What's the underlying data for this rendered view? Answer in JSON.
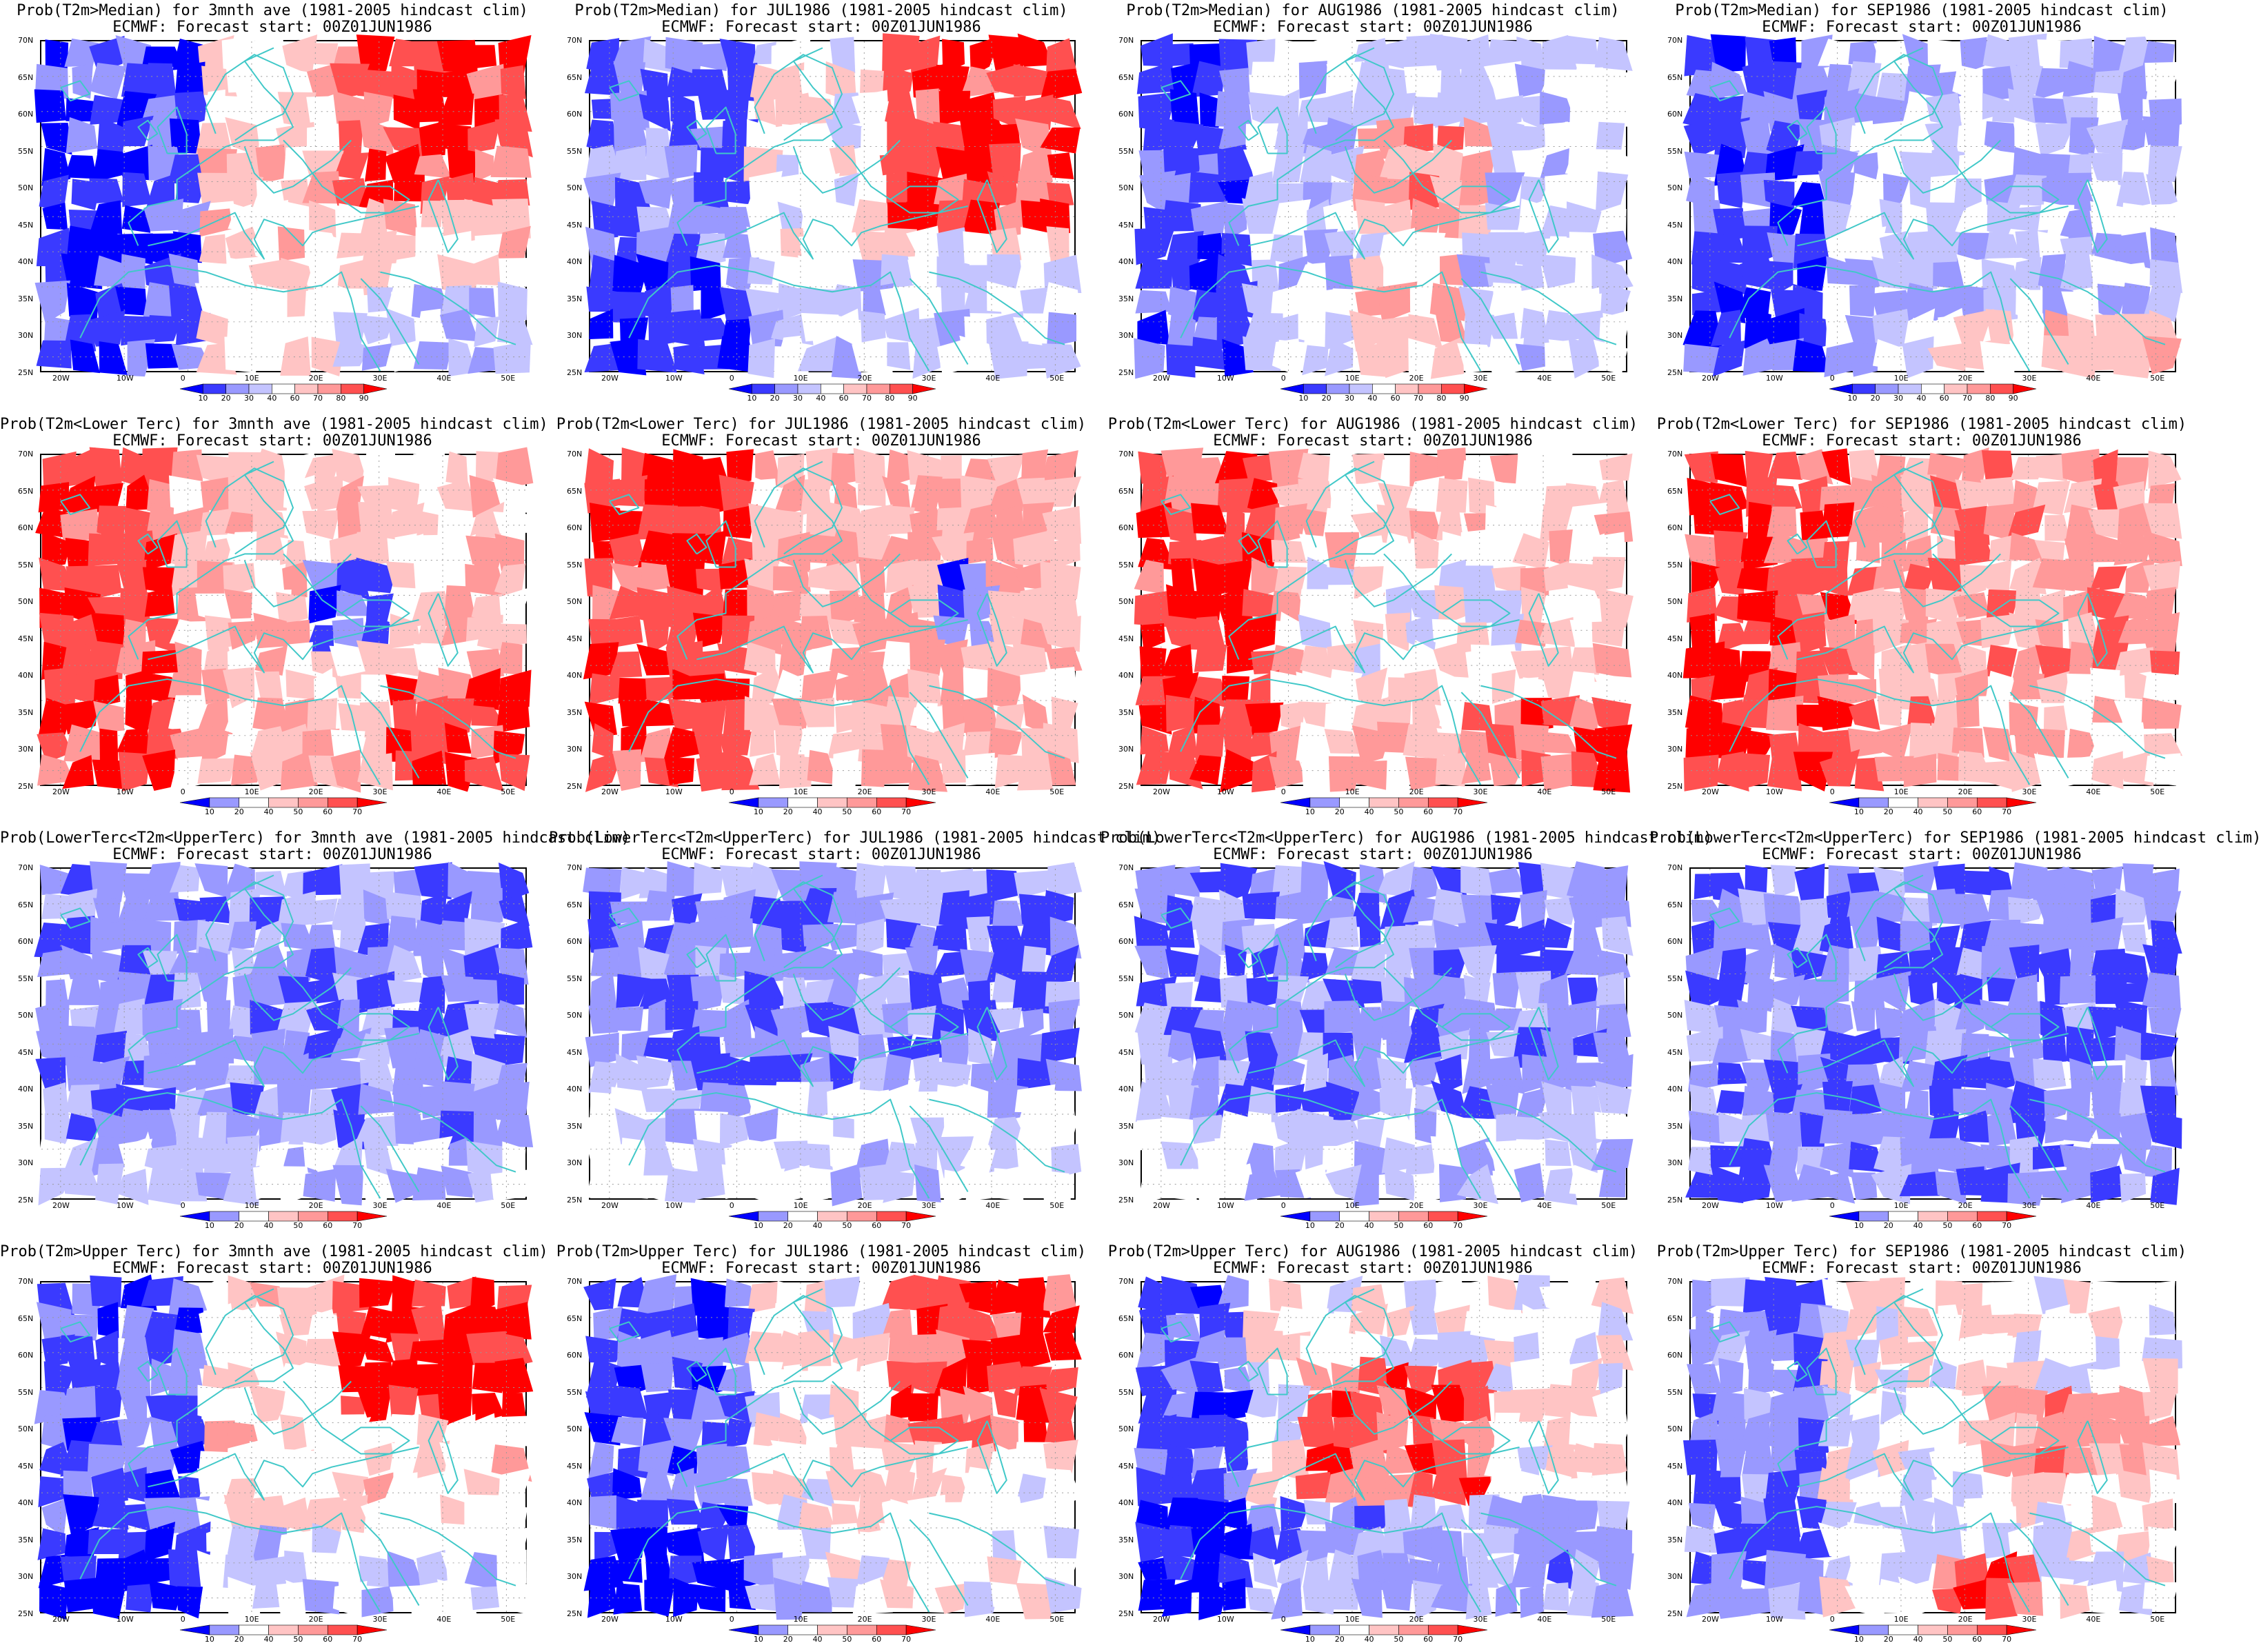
{
  "colors": {
    "blue_deep": "#0000ff",
    "blue_mid": "#3a3aff",
    "blue_light": "#9999ff",
    "blue_pale": "#c4c4ff",
    "white": "#ffffff",
    "red_pale": "#ffc4c4",
    "red_light": "#ff9999",
    "red_mid": "#ff5050",
    "red_deep": "#ff0000",
    "coast": "#40c8c8"
  },
  "axes": {
    "lat_labels": [
      "70N",
      "65N",
      "60N",
      "55N",
      "50N",
      "45N",
      "40N",
      "35N",
      "30N",
      "25N"
    ],
    "lon_labels": [
      "20W",
      "10W",
      "0",
      "10E",
      "20E",
      "30E",
      "40E",
      "50E"
    ]
  },
  "colorbars": {
    "median": [
      "10",
      "20",
      "30",
      "40",
      "60",
      "70",
      "80",
      "90"
    ],
    "tercile": [
      "10",
      "20",
      "40",
      "50",
      "60",
      "70"
    ]
  },
  "rows": [
    {
      "colorbar": "median",
      "panels": [
        {
          "title": "Prob(T2m>Median) for 3mnth ave (1981-2005 hindcast clim)",
          "subtitle": "ECMWF: Forecast start: 00Z01JUN1986",
          "pattern": "r1c1"
        },
        {
          "title": "Prob(T2m>Median) for JUL1986 (1981-2005 hindcast clim)",
          "subtitle": "ECMWF: Forecast start: 00Z01JUN1986",
          "pattern": "r1c2"
        },
        {
          "title": "Prob(T2m>Median) for AUG1986 (1981-2005 hindcast clim)",
          "subtitle": "ECMWF: Forecast start: 00Z01JUN1986",
          "pattern": "r1c3"
        },
        {
          "title": "Prob(T2m>Median) for SEP1986 (1981-2005 hindcast clim)",
          "subtitle": "ECMWF: Forecast start: 00Z01JUN1986",
          "pattern": "r1c4"
        }
      ]
    },
    {
      "colorbar": "tercile",
      "panels": [
        {
          "title": "Prob(T2m<Lower Terc) for 3mnth ave (1981-2005 hindcast clim)",
          "subtitle": "ECMWF: Forecast start: 00Z01JUN1986",
          "pattern": "r2c1"
        },
        {
          "title": "Prob(T2m<Lower Terc) for JUL1986 (1981-2005 hindcast clim)",
          "subtitle": "ECMWF: Forecast start: 00Z01JUN1986",
          "pattern": "r2c2"
        },
        {
          "title": "Prob(T2m<Lower Terc) for AUG1986 (1981-2005 hindcast clim)",
          "subtitle": "ECMWF: Forecast start: 00Z01JUN1986",
          "pattern": "r2c3"
        },
        {
          "title": "Prob(T2m<Lower Terc) for SEP1986 (1981-2005 hindcast clim)",
          "subtitle": "ECMWF: Forecast start: 00Z01JUN1986",
          "pattern": "r2c4"
        }
      ]
    },
    {
      "colorbar": "tercile",
      "panels": [
        {
          "title": "Prob(LowerTerc<T2m<UpperTerc) for 3mnth ave (1981-2005 hindcast clim)",
          "subtitle": "ECMWF: Forecast start: 00Z01JUN1986",
          "pattern": "r3c1"
        },
        {
          "title": "Prob(LowerTerc<T2m<UpperTerc) for JUL1986 (1981-2005 hindcast clim)",
          "subtitle": "ECMWF: Forecast start: 00Z01JUN1986",
          "pattern": "r3c2"
        },
        {
          "title": "Prob(LowerTerc<T2m<UpperTerc) for AUG1986 (1981-2005 hindcast clim)",
          "subtitle": "ECMWF: Forecast start: 00Z01JUN1986",
          "pattern": "r3c3"
        },
        {
          "title": "Prob(LowerTerc<T2m<UpperTerc) for SEP1986 (1981-2005 hindcast clim)",
          "subtitle": "ECMWF: Forecast start: 00Z01JUN1986",
          "pattern": "r3c4"
        }
      ]
    },
    {
      "colorbar": "tercile",
      "panels": [
        {
          "title": "Prob(T2m>Upper Terc) for 3mnth ave (1981-2005 hindcast clim)",
          "subtitle": "ECMWF: Forecast start: 00Z01JUN1986",
          "pattern": "r4c1"
        },
        {
          "title": "Prob(T2m>Upper Terc) for JUL1986 (1981-2005 hindcast clim)",
          "subtitle": "ECMWF: Forecast start: 00Z01JUN1986",
          "pattern": "r4c2"
        },
        {
          "title": "Prob(T2m>Upper Terc) for AUG1986 (1981-2005 hindcast clim)",
          "subtitle": "ECMWF: Forecast start: 00Z01JUN1986",
          "pattern": "r4c3"
        },
        {
          "title": "Prob(T2m>Upper Terc) for SEP1986 (1981-2005 hindcast clim)",
          "subtitle": "ECMWF: Forecast start: 00Z01JUN1986",
          "pattern": "r4c4"
        }
      ]
    }
  ]
}
